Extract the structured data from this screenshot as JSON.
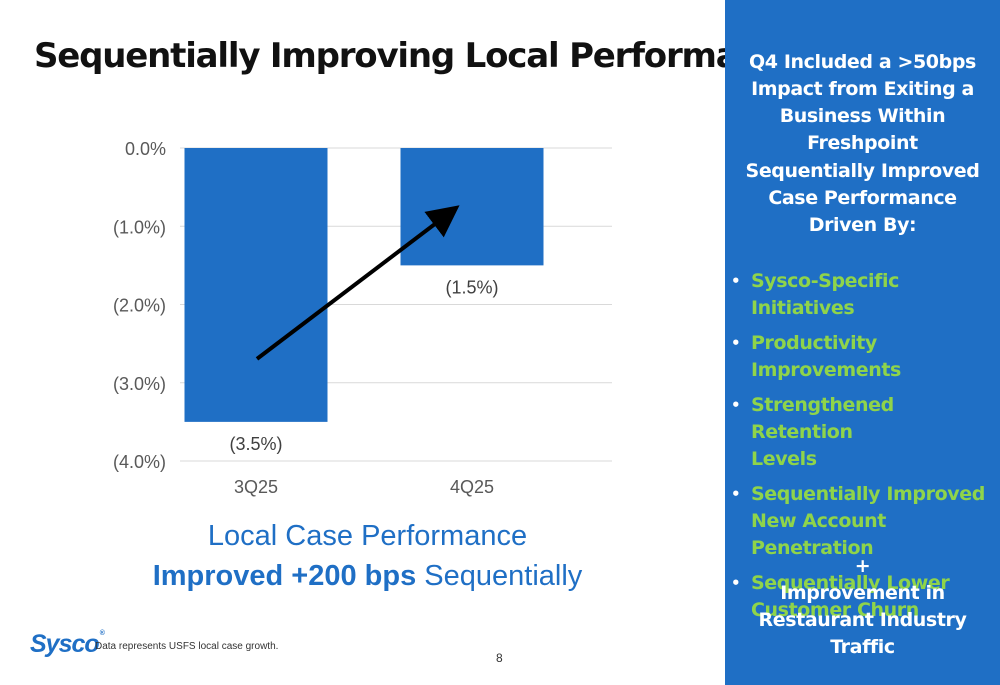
{
  "slide": {
    "title": "Sequentially Improving Local Performance",
    "caption_line1": "Local Case Performance",
    "caption_bold": "Improved +200 bps",
    "caption_rest": " Sequentially",
    "logo": "Sysco",
    "logo_mark": "®",
    "footnote": "Data represents USFS local case growth.",
    "page_number": "8"
  },
  "panel": {
    "heading_lines": [
      "Q4 Included a >50bps",
      "Impact from Exiting a",
      "Business Within Freshpoint"
    ],
    "subheading_lines": [
      "Sequentially Improved",
      "Case Performance",
      "Driven By:"
    ],
    "bullet_glyph": "•",
    "bullets": [
      {
        "lines": [
          "Sysco-Specific Initiatives"
        ]
      },
      {
        "lines": [
          "Productivity",
          "Improvements"
        ]
      },
      {
        "lines": [
          "Strengthened Retention",
          "Levels"
        ]
      },
      {
        "lines": [
          "Sequentially Improved",
          "New Account Penetration"
        ]
      },
      {
        "lines": [
          "Sequentially Lower",
          "Customer Churn"
        ]
      }
    ],
    "plus": "+",
    "footer_lines": [
      "Improvement in",
      "Restaurant Industry Traffic"
    ],
    "colors": {
      "background": "#1f6fc5",
      "bullet_text": "#8fd44a",
      "text": "#ffffff"
    }
  },
  "chart_data": {
    "type": "bar",
    "categories": [
      "3Q25",
      "4Q25"
    ],
    "values": [
      -3.5,
      -1.5
    ],
    "data_labels": [
      "(3.5%)",
      "(1.5%)"
    ],
    "ylim": [
      -4.0,
      0.0
    ],
    "y_ticks": [
      0.0,
      -1.0,
      -2.0,
      -3.0,
      -4.0
    ],
    "y_tick_labels": [
      "0.0%",
      "(1.0%)",
      "(2.0%)",
      "(3.0%)",
      "(4.0%)"
    ],
    "grid": true,
    "bar_color": "#1f6fc5",
    "trend_arrow": {
      "from_category": "3Q25",
      "to_category": "4Q25",
      "color": "#000000"
    },
    "title": "",
    "xlabel": "",
    "ylabel": ""
  }
}
